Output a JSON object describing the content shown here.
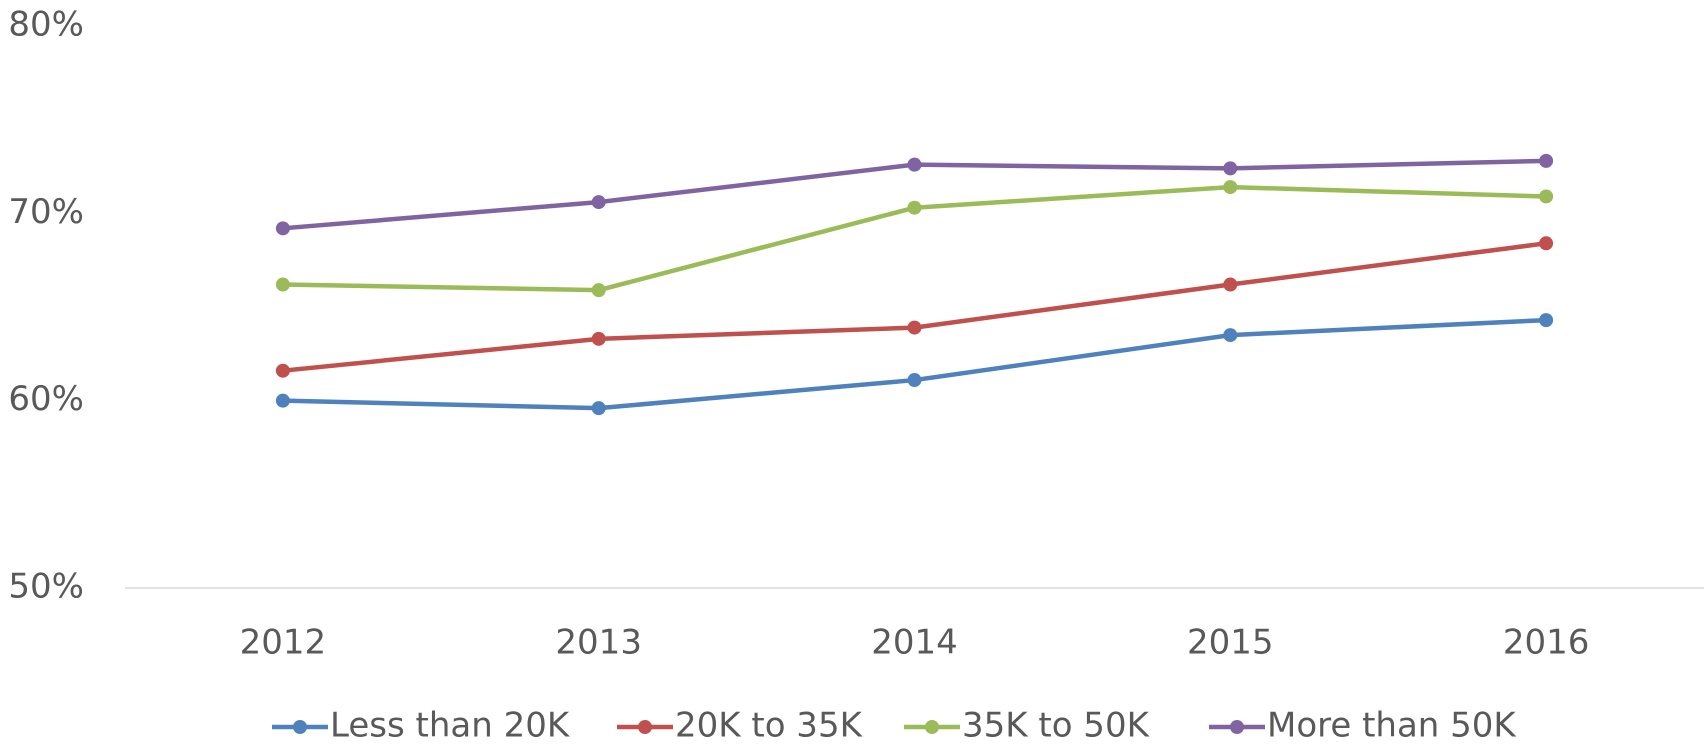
{
  "chart_data": {
    "type": "line",
    "categories": [
      "2012",
      "2013",
      "2014",
      "2015",
      "2016"
    ],
    "series": [
      {
        "name": "Less than 20K",
        "color": "#4f81bd",
        "values": [
          60.0,
          59.6,
          61.1,
          63.5,
          64.3
        ]
      },
      {
        "name": "20K to 35K",
        "color": "#c0504d",
        "values": [
          61.6,
          63.3,
          63.9,
          66.2,
          68.4
        ]
      },
      {
        "name": "35K to 50K",
        "color": "#9bbb59",
        "values": [
          66.2,
          65.9,
          70.3,
          71.4,
          70.9
        ]
      },
      {
        "name": "More than 50K",
        "color": "#8064a2",
        "values": [
          69.2,
          70.6,
          72.6,
          72.4,
          72.8
        ]
      }
    ],
    "ylim": [
      50,
      80
    ],
    "yticks": [
      {
        "value": 50,
        "label": "50%"
      },
      {
        "value": 60,
        "label": "60%"
      },
      {
        "value": 70,
        "label": "70%"
      },
      {
        "value": 80,
        "label": "80%"
      }
    ],
    "grid": false,
    "legend": "bottom"
  }
}
